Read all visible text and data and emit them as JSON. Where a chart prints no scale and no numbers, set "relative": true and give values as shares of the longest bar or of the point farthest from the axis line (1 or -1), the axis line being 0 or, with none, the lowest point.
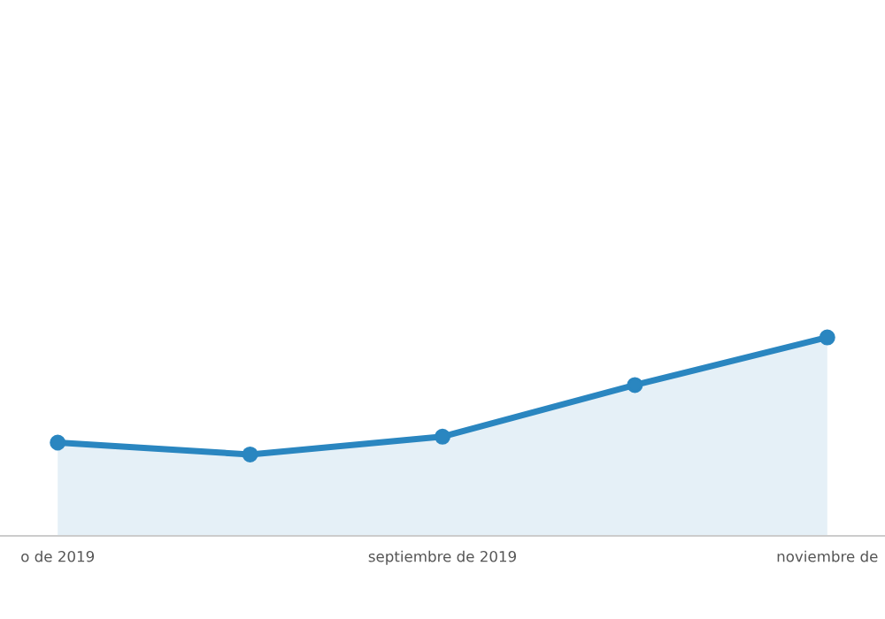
{
  "chart_data": {
    "type": "area",
    "relative": true,
    "categories": [
      "o de 2019",
      null,
      "septiembre de 2019",
      null,
      "noviembre de"
    ],
    "series": [
      {
        "color": "#2a86c0",
        "values": [
          0.47,
          0.41,
          0.5,
          0.76,
          1.0
        ]
      }
    ],
    "marker": "circle"
  }
}
